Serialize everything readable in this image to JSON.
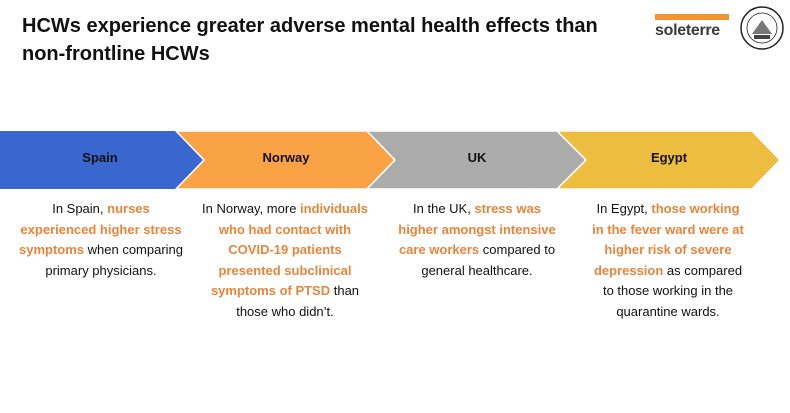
{
  "title": "HCWs experience greater adverse mental health effects than non-frontline HCWs",
  "logos": {
    "soleterre": "soleterre",
    "seal": "Ospedale di S. Matteo Pavia"
  },
  "colors": {
    "spain": "#3a67cf",
    "norway": "#f9a346",
    "uk": "#ababab",
    "egypt": "#ecbd3f",
    "highlight": "#e8853a"
  },
  "steps": [
    {
      "label": "Spain",
      "parts": [
        "In Spain, ",
        "nurses experienced higher stress symptoms",
        " when comparing primary physicians."
      ]
    },
    {
      "label": "Norway",
      "parts": [
        "In Norway, more ",
        "individuals who had contact with COVID-19 patients presented subclinical symptoms of PTSD",
        " than those who didn’t."
      ]
    },
    {
      "label": "UK",
      "parts": [
        "In the UK, ",
        "stress was higher amongst intensive care workers",
        " compared to general healthcare."
      ]
    },
    {
      "label": "Egypt",
      "parts": [
        "In Egypt, ",
        "those working in the fever ward were at higher risk of severe depression",
        " as compared to those working in the quarantine wards."
      ]
    }
  ]
}
